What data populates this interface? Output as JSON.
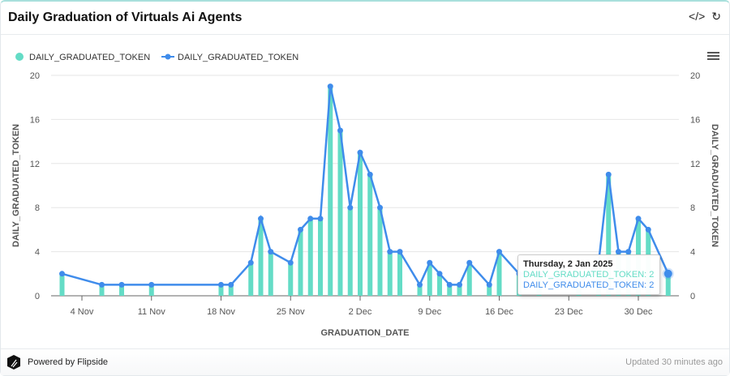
{
  "header": {
    "title": "Daily Graduation of Virtuals Ai Agents",
    "embed_icon": "code-icon",
    "refresh_icon": "refresh-icon",
    "menu_icon": "hamburger-icon"
  },
  "footer": {
    "powered": "Powered by Flipside",
    "updated": "Updated 30 minutes ago"
  },
  "tooltip": {
    "date": "Thursday, 2 Jan 2025",
    "line1": "DAILY_GRADUATED_TOKEN: 2",
    "line2": "DAILY_GRADUATED_TOKEN: 2"
  },
  "chart_data": {
    "type": "bar+line",
    "xlabel": "GRADUATION_DATE",
    "ylabel": "DAILY_GRADUATED_TOKEN",
    "y2label": "DAILY_GRADUATED_TOKEN",
    "ylim": [
      0,
      20
    ],
    "yticks": [
      "0",
      "4",
      "8",
      "12",
      "16",
      "20"
    ],
    "xticks": [
      {
        "date": "2024-11-04",
        "label": "4 Nov"
      },
      {
        "date": "2024-11-11",
        "label": "11 Nov"
      },
      {
        "date": "2024-11-18",
        "label": "18 Nov"
      },
      {
        "date": "2024-11-25",
        "label": "25 Nov"
      },
      {
        "date": "2024-12-02",
        "label": "2 Dec"
      },
      {
        "date": "2024-12-09",
        "label": "9 Dec"
      },
      {
        "date": "2024-12-16",
        "label": "16 Dec"
      },
      {
        "date": "2024-12-23",
        "label": "23 Dec"
      },
      {
        "date": "2024-12-30",
        "label": "30 Dec"
      }
    ],
    "grid": true,
    "legend_position": "top-left",
    "colors": {
      "bar": "#64dcc6",
      "line": "#3f8ceb"
    },
    "series": [
      {
        "name": "DAILY_GRADUATED_TOKEN",
        "type": "bar"
      },
      {
        "name": "DAILY_GRADUATED_TOKEN",
        "type": "line"
      }
    ],
    "x": [
      "2024-11-02",
      "2024-11-06",
      "2024-11-08",
      "2024-11-11",
      "2024-11-18",
      "2024-11-19",
      "2024-11-21",
      "2024-11-22",
      "2024-11-23",
      "2024-11-25",
      "2024-11-26",
      "2024-11-27",
      "2024-11-28",
      "2024-11-29",
      "2024-11-30",
      "2024-12-01",
      "2024-12-02",
      "2024-12-03",
      "2024-12-04",
      "2024-12-05",
      "2024-12-06",
      "2024-12-08",
      "2024-12-09",
      "2024-12-10",
      "2024-12-11",
      "2024-12-12",
      "2024-12-13",
      "2024-12-15",
      "2024-12-16",
      "2024-12-18",
      "2024-12-20",
      "2024-12-24",
      "2024-12-26",
      "2024-12-27",
      "2024-12-28",
      "2024-12-29",
      "2024-12-30",
      "2024-12-31",
      "2025-01-02"
    ],
    "values": [
      2,
      1,
      1,
      1,
      1,
      1,
      3,
      7,
      4,
      3,
      6,
      7,
      7,
      19,
      15,
      8,
      13,
      11,
      8,
      4,
      4,
      1,
      3,
      2,
      1,
      1,
      3,
      1,
      4,
      2,
      2,
      1,
      3,
      11,
      4,
      4,
      7,
      6,
      2
    ]
  }
}
